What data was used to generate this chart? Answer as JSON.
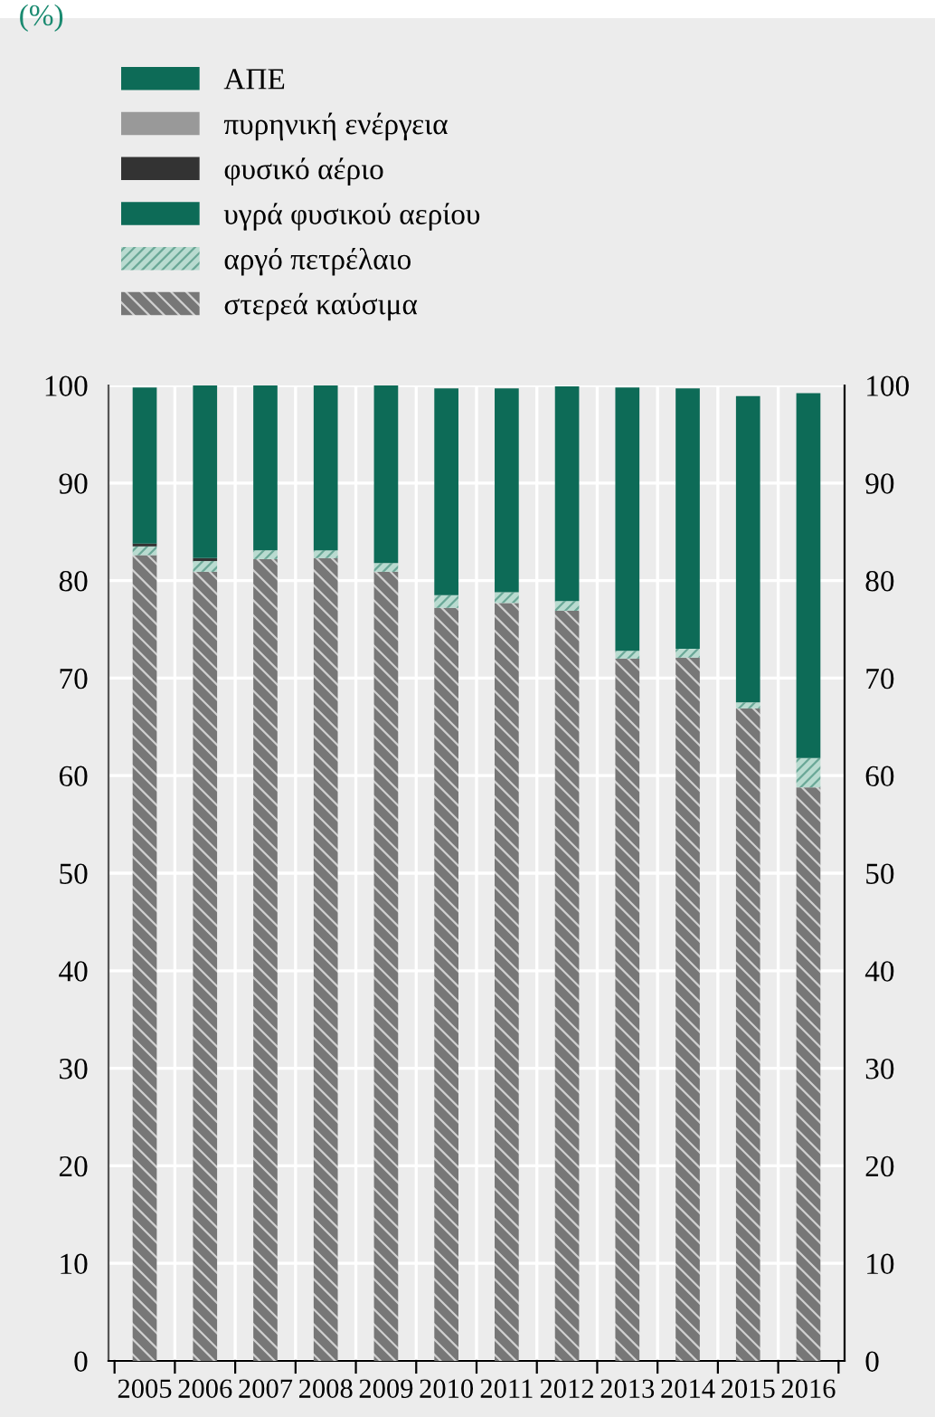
{
  "chart_data": {
    "type": "bar",
    "stacked": true,
    "annotations": [
      "(%)"
    ],
    "categories": [
      "2005",
      "2006",
      "2007",
      "2008",
      "2009",
      "2010",
      "2011",
      "2012",
      "2013",
      "2014",
      "2015",
      "2016"
    ],
    "series": [
      {
        "name": "στερεά καύσιμα",
        "color": "#777777",
        "values": [
          82.6,
          80.9,
          82.2,
          82.3,
          80.9,
          77.2,
          77.7,
          76.9,
          72.0,
          72.1,
          66.9,
          58.8
        ]
      },
      {
        "name": "αργό πετρέλαιο",
        "color": "#b9dbd0",
        "values": [
          0.9,
          1.1,
          0.9,
          0.8,
          0.9,
          1.3,
          1.1,
          1.0,
          0.8,
          0.9,
          0.6,
          3.0
        ]
      },
      {
        "name": "υγρά φυσικού αερίου",
        "color": "#0d6b57",
        "values": [
          0,
          0,
          0.3,
          0,
          0,
          0,
          0,
          0,
          0,
          0,
          0,
          0
        ]
      },
      {
        "name": "φυσικό αέριο",
        "color": "#333333",
        "values": [
          0.3,
          0.3,
          0,
          0,
          0,
          0,
          0,
          0,
          0,
          0,
          0,
          0
        ]
      },
      {
        "name": "πυρηνική ενέργεια",
        "color": "#999999",
        "values": [
          0,
          0,
          0,
          0,
          0,
          0,
          0,
          0,
          0,
          0,
          0,
          0
        ]
      },
      {
        "name": "ΑΠΕ",
        "color": "#0d6b57",
        "values": [
          16.0,
          17.8,
          16.7,
          16.9,
          18.2,
          21.2,
          20.9,
          22.0,
          27.0,
          26.7,
          31.4,
          37.4
        ]
      }
    ],
    "ylim": [
      0,
      100
    ],
    "yticks": [
      0,
      10,
      20,
      30,
      40,
      50,
      60,
      70,
      80,
      90,
      100
    ],
    "y2lim": [
      0,
      100
    ],
    "y2ticks": [
      0,
      10,
      20,
      30,
      40,
      50,
      60,
      70,
      80,
      90,
      100
    ],
    "grid": true,
    "legend": "top left"
  }
}
